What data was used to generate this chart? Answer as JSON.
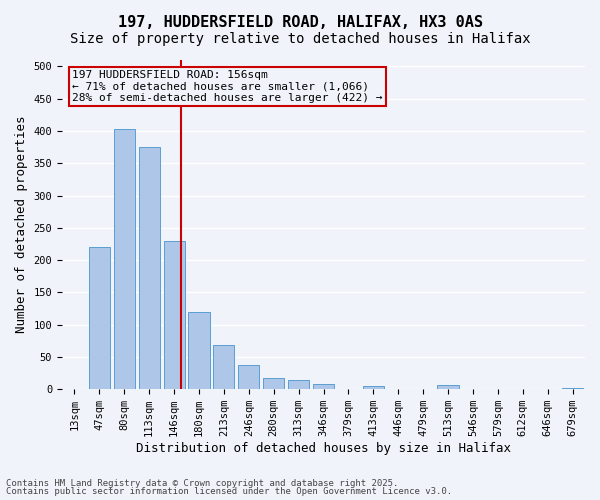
{
  "title_line1": "197, HUDDERSFIELD ROAD, HALIFAX, HX3 0AS",
  "title_line2": "Size of property relative to detached houses in Halifax",
  "xlabel": "Distribution of detached houses by size in Halifax",
  "ylabel": "Number of detached properties",
  "categories": [
    "13sqm",
    "47sqm",
    "80sqm",
    "113sqm",
    "146sqm",
    "180sqm",
    "213sqm",
    "246sqm",
    "280sqm",
    "313sqm",
    "346sqm",
    "379sqm",
    "413sqm",
    "446sqm",
    "479sqm",
    "513sqm",
    "546sqm",
    "579sqm",
    "612sqm",
    "646sqm",
    "679sqm"
  ],
  "values": [
    1,
    220,
    403,
    375,
    230,
    120,
    68,
    38,
    18,
    15,
    8,
    1,
    5,
    1,
    1,
    6,
    1,
    1,
    1,
    1,
    2
  ],
  "bar_color": "#aec6e8",
  "bar_edge_color": "#5a9fd4",
  "vline_color": "#cc0000",
  "annotation_text": "197 HUDDERSFIELD ROAD: 156sqm\n← 71% of detached houses are smaller (1,066)\n28% of semi-detached houses are larger (422) →",
  "annotation_box_color": "#cc0000",
  "annotation_text_color": "#000000",
  "ylim": [
    0,
    510
  ],
  "yticks": [
    0,
    50,
    100,
    150,
    200,
    250,
    300,
    350,
    400,
    450,
    500
  ],
  "background_color": "#f0f4fa",
  "grid_color": "#ffffff",
  "footer_line1": "Contains HM Land Registry data © Crown copyright and database right 2025.",
  "footer_line2": "Contains public sector information licensed under the Open Government Licence v3.0.",
  "title_fontsize": 11,
  "subtitle_fontsize": 10,
  "axis_label_fontsize": 9,
  "tick_fontsize": 7.5,
  "annotation_fontsize": 8
}
